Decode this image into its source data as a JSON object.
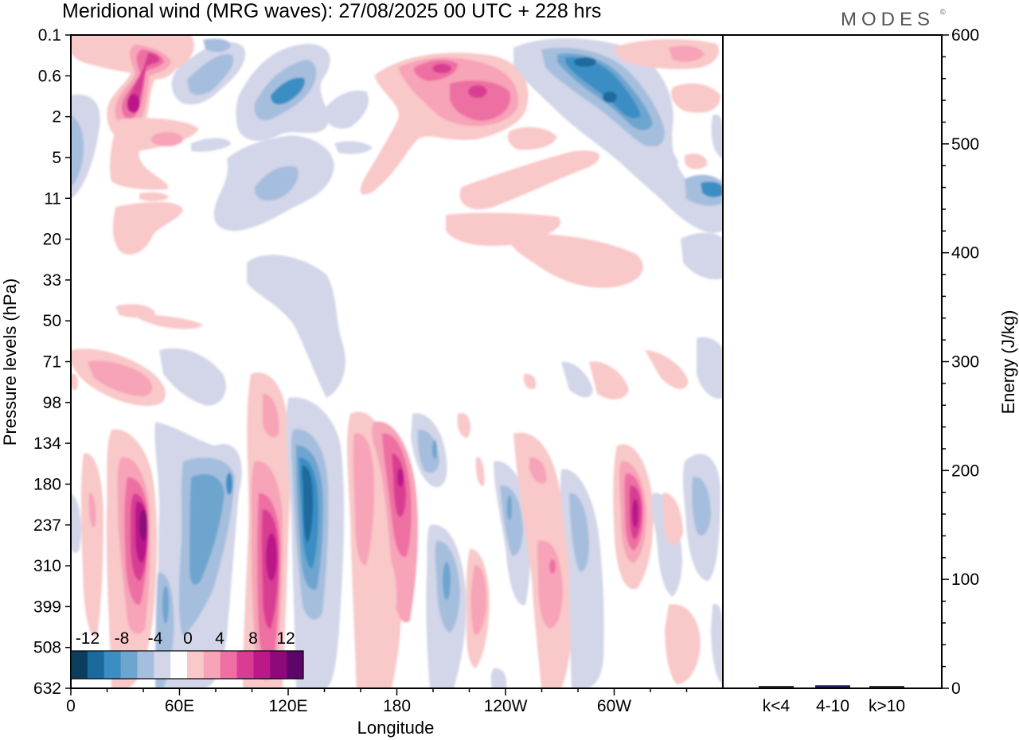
{
  "title": "Meridional wind (MRG waves):  27/08/2025  00 UTC  + 228 hrs",
  "brand": "MODES",
  "brand_mark": "©",
  "chart_data": [
    {
      "type": "heatmap",
      "title": "Meridional wind (MRG waves)",
      "xlabel": "Longitude",
      "ylabel": "Pressure levels (hPa)",
      "x_ticks": [
        "0",
        "60E",
        "120E",
        "180",
        "120W",
        "60W"
      ],
      "x_tick_values": [
        0,
        60,
        120,
        180,
        240,
        300
      ],
      "xlim": [
        0,
        360
      ],
      "y_ticks": [
        "0.1",
        "0.6",
        "2",
        "5",
        "11",
        "20",
        "33",
        "50",
        "71",
        "98",
        "134",
        "180",
        "237",
        "310",
        "399",
        "508",
        "632"
      ],
      "colorbar": {
        "tick_labels": [
          "-12",
          "-8",
          "-4",
          "0",
          "4",
          "8",
          "12"
        ],
        "levels": [
          -14,
          -12,
          -10,
          -8,
          -6,
          -4,
          -2,
          2,
          4,
          6,
          8,
          10,
          12,
          14
        ],
        "colors": [
          "#0b3e5e",
          "#1a6a9e",
          "#3a8ec4",
          "#6ea5cf",
          "#a6bedd",
          "#d2d6e8",
          "#ffffff",
          "#f9c8c8",
          "#f7a3b8",
          "#ee6fa2",
          "#d93c93",
          "#bb1889",
          "#8e0a7b",
          "#5e0569"
        ]
      },
      "features": [
        {
          "lon": 43,
          "level": "237",
          "value": 13
        },
        {
          "lon": 110,
          "level": "310",
          "value": 12
        },
        {
          "lon": 128,
          "level": "237",
          "value": -12
        },
        {
          "lon": 184,
          "level": "180",
          "value": 10
        },
        {
          "lon": 297,
          "level": "237",
          "value": 11
        },
        {
          "lon": 34,
          "level": "2",
          "value": 12
        },
        {
          "lon": 210,
          "level": "0.6",
          "value": 10
        },
        {
          "lon": 282,
          "level": "0.6",
          "value": -12
        },
        {
          "lon": 127,
          "level": "0.6",
          "value": -10
        },
        {
          "lon": 193,
          "level": "310",
          "value": -9
        }
      ]
    },
    {
      "type": "bar",
      "categories": [
        "k<4",
        "4-10",
        "k>10"
      ],
      "values": [
        0,
        2,
        0
      ],
      "ylabel": "Energy (J/kg)",
      "ylim": [
        0,
        600
      ],
      "y_ticks": [
        "0",
        "100",
        "200",
        "300",
        "400",
        "500",
        "600"
      ]
    }
  ]
}
